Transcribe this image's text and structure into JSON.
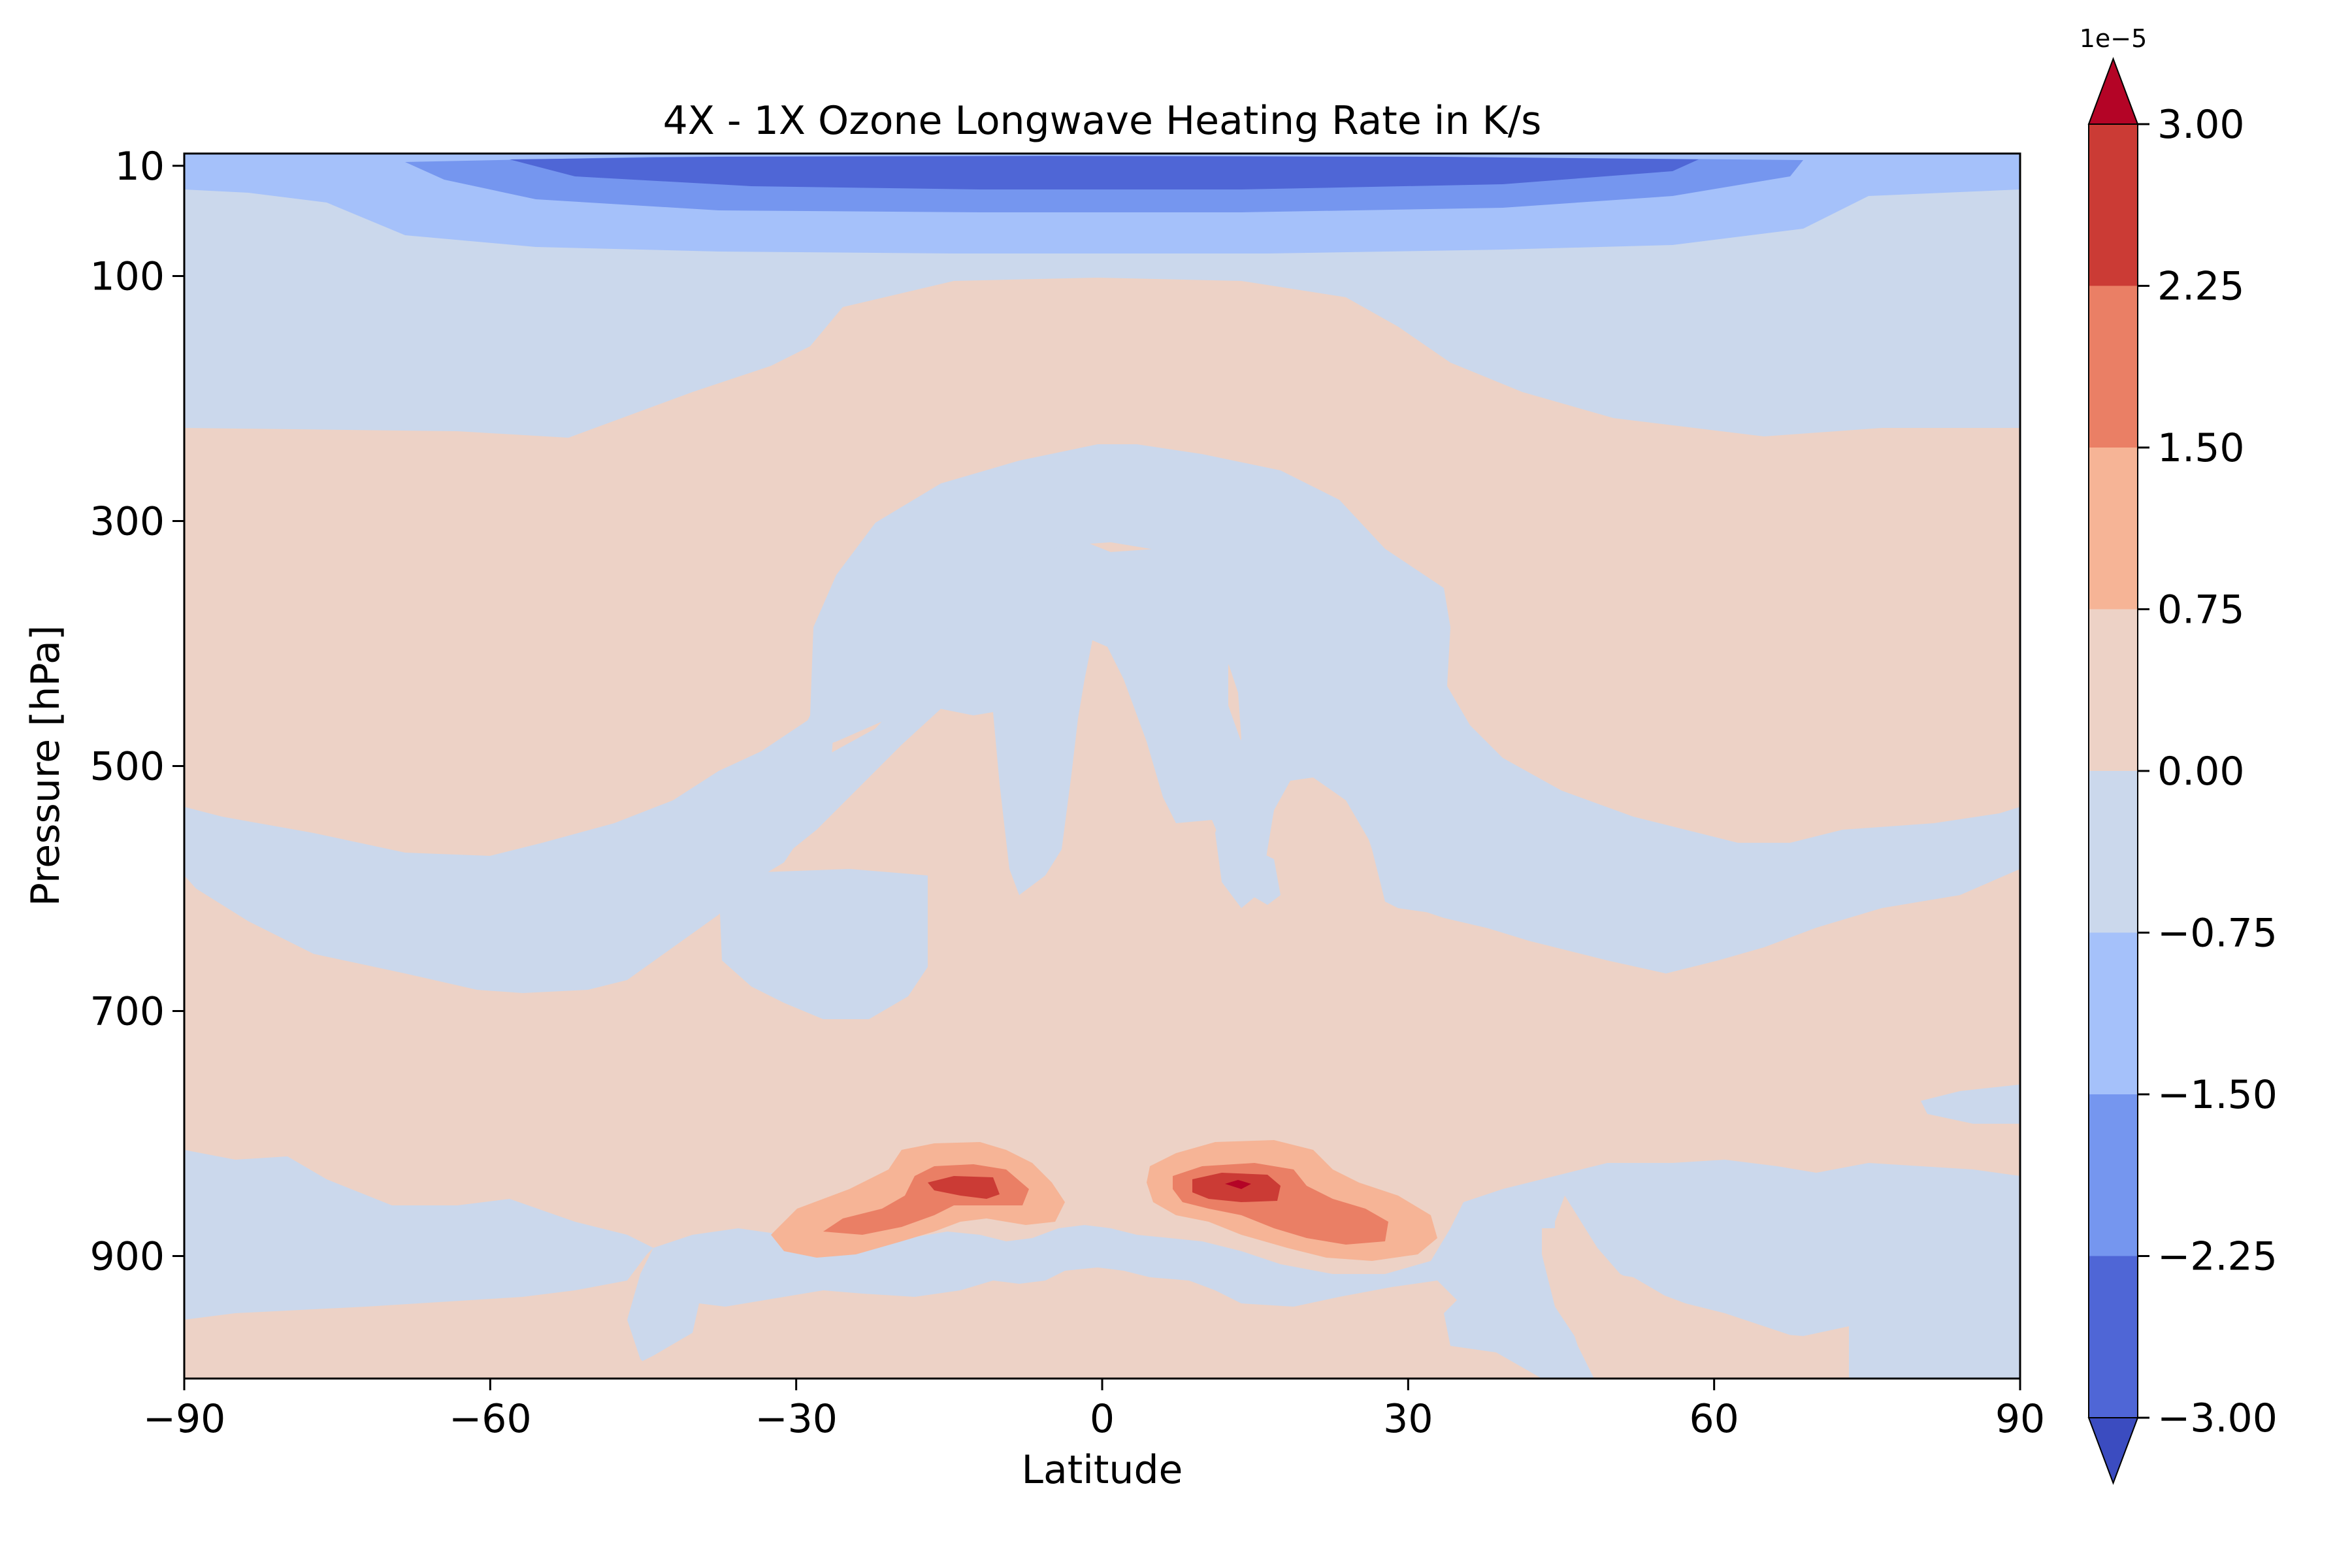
{
  "chart_data": {
    "type": "contourf",
    "title": "4X - 1X Ozone Longwave Heating Rate in K/s",
    "xlabel": "Latitude",
    "ylabel": "Pressure [hPa]",
    "xlim": [
      -90,
      90
    ],
    "ylim": [
      1000,
      0
    ],
    "x_ticks": [
      -90,
      -60,
      -30,
      0,
      30,
      60,
      90
    ],
    "x_tick_labels": [
      "−90",
      "−60",
      "−30",
      "0",
      "30",
      "60",
      "90"
    ],
    "y_ticks": [
      10,
      100,
      300,
      500,
      700,
      900
    ],
    "y_tick_labels": [
      "10",
      "100",
      "300",
      "500",
      "700",
      "900"
    ],
    "grid": false,
    "colorbar": {
      "levels": [
        -3.0,
        -2.25,
        -1.5,
        -0.75,
        0.0,
        0.75,
        1.5,
        2.25,
        3.0
      ],
      "tick_labels": [
        "−3.00",
        "−2.25",
        "−1.50",
        "−0.75",
        "0.00",
        "0.75",
        "1.50",
        "2.25",
        "3.00"
      ],
      "offset_label": "1e−5",
      "extend": "both",
      "colors": {
        "under": "#3b4cc0",
        "bins": [
          "#4f66d6",
          "#7596ef",
          "#a5c1fa",
          "#cbd8ec",
          "#edd2c6",
          "#f6b496",
          "#ea7f65",
          "#cb3b35"
        ],
        "over": "#b40426"
      }
    },
    "regions": [
      {
        "level": 0.0,
        "bin": "0.00 to 0.75",
        "lat": [
          -90,
          90
        ],
        "pressure": [
          1000,
          0
        ]
      },
      {
        "level": -0.75,
        "bin": "-0.75 to 0.00",
        "lat": [
          -90,
          90
        ],
        "pressure": [
          230,
          40
        ],
        "desc": "upper band"
      },
      {
        "level": -0.75,
        "bin": "-0.75 to 0.00",
        "lat": [
          -30,
          30
        ],
        "pressure": [
          600,
          240
        ],
        "desc": "arch"
      },
      {
        "level": -0.75,
        "bin": "-0.75 to 0.00",
        "lat": [
          -90,
          90
        ],
        "pressure": [
          680,
          540
        ],
        "desc": "mid band"
      },
      {
        "level": -0.75,
        "bin": "-0.75 to 0.00",
        "lat": [
          -90,
          90
        ],
        "pressure": [
          1000,
          800
        ],
        "desc": "lower band"
      },
      {
        "level": -1.5,
        "bin": "-1.50 to -0.75",
        "lat": [
          -90,
          90
        ],
        "pressure": [
          40,
          0
        ]
      },
      {
        "level": -2.25,
        "bin": "-2.25 to -1.50",
        "lat": [
          -68,
          68
        ],
        "pressure": [
          25,
          0
        ]
      },
      {
        "level": -3.0,
        "bin": "-3.00 to -2.25",
        "lat": [
          -58,
          58
        ],
        "pressure": [
          12,
          0
        ]
      },
      {
        "level": 0.75,
        "bin": "0.75 to 1.50",
        "lat": [
          -32,
          -5
        ],
        "pressure": [
          890,
          810
        ],
        "desc": "southern maximum"
      },
      {
        "level": 0.75,
        "bin": "0.75 to 1.50",
        "lat": [
          4,
          32
        ],
        "pressure": [
          890,
          810
        ],
        "desc": "northern maximum"
      },
      {
        "level": 1.5,
        "bin": "1.50 to 2.25",
        "lat": [
          -28,
          -8
        ],
        "pressure": [
          880,
          820
        ]
      },
      {
        "level": 1.5,
        "bin": "1.50 to 2.25",
        "lat": [
          7,
          28
        ],
        "pressure": [
          885,
          820
        ]
      },
      {
        "level": 2.25,
        "bin": "2.25 to 3.00",
        "lat": [
          -17,
          -10
        ],
        "pressure": [
          855,
          835
        ]
      },
      {
        "level": 2.25,
        "bin": "2.25 to 3.00",
        "lat": [
          9,
          18
        ],
        "pressure": [
          855,
          835
        ]
      }
    ]
  }
}
